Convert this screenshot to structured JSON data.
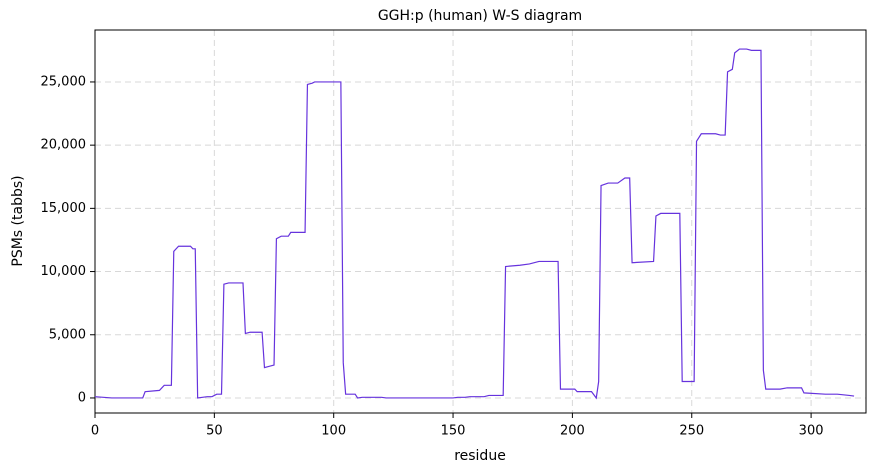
{
  "chart_data": {
    "type": "line",
    "title": "GGH:p (human) W-S diagram",
    "x_label": "residue",
    "y_label": "PSMs (tabbs)",
    "xlim": [
      0,
      323
    ],
    "ylim": [
      -1190,
      29110
    ],
    "xticks": [
      0,
      50,
      100,
      150,
      200,
      250,
      300
    ],
    "yticks": [
      0,
      {
        "value": 5000,
        "label": "5,000"
      },
      {
        "value": 10000,
        "label": "10,000"
      },
      {
        "value": 15000,
        "label": "15,000"
      },
      {
        "value": 20000,
        "label": "20,000"
      },
      {
        "value": 25000,
        "label": "25,000"
      }
    ],
    "grid": true,
    "series": [
      {
        "color": "#6633dd",
        "x": [
          0,
          7,
          20,
          21,
          27,
          29,
          32,
          33,
          35,
          40,
          41,
          42,
          43,
          47,
          49,
          51,
          53,
          54,
          56,
          62,
          63,
          65,
          70,
          71,
          73,
          75,
          76,
          78,
          81,
          82,
          88,
          89,
          91,
          92,
          103,
          104,
          105,
          109,
          110,
          112,
          120,
          122,
          150,
          152,
          155,
          157,
          163,
          165,
          171,
          172,
          178,
          182,
          186,
          194,
          195,
          201,
          202,
          208,
          210,
          211,
          212,
          215,
          219,
          222,
          224,
          225,
          234,
          235,
          237,
          245,
          246,
          251,
          252,
          254,
          260,
          262,
          264,
          265,
          267,
          268,
          270,
          273,
          275,
          279,
          280,
          281,
          287,
          290,
          296,
          297,
          306,
          311,
          316,
          318
        ],
        "values": [
          100,
          0,
          0,
          500,
          600,
          1000,
          1000,
          11600,
          12000,
          12000,
          11800,
          11800,
          0,
          100,
          100,
          300,
          300,
          9000,
          9100,
          9100,
          5100,
          5200,
          5200,
          2400,
          2500,
          2600,
          12600,
          12800,
          12800,
          13100,
          13100,
          24800,
          24900,
          25000,
          25000,
          2800,
          300,
          300,
          0,
          50,
          50,
          0,
          0,
          50,
          50,
          100,
          100,
          200,
          200,
          10400,
          10500,
          10600,
          10800,
          10800,
          700,
          700,
          500,
          500,
          0,
          1300,
          16800,
          17000,
          17000,
          17400,
          17400,
          10700,
          10800,
          14400,
          14600,
          14600,
          1300,
          1300,
          20300,
          20900,
          20900,
          20800,
          20800,
          25800,
          26000,
          27300,
          27600,
          27600,
          27500,
          27500,
          2200,
          700,
          700,
          800,
          800,
          400,
          300,
          300,
          200,
          150
        ]
      }
    ]
  }
}
